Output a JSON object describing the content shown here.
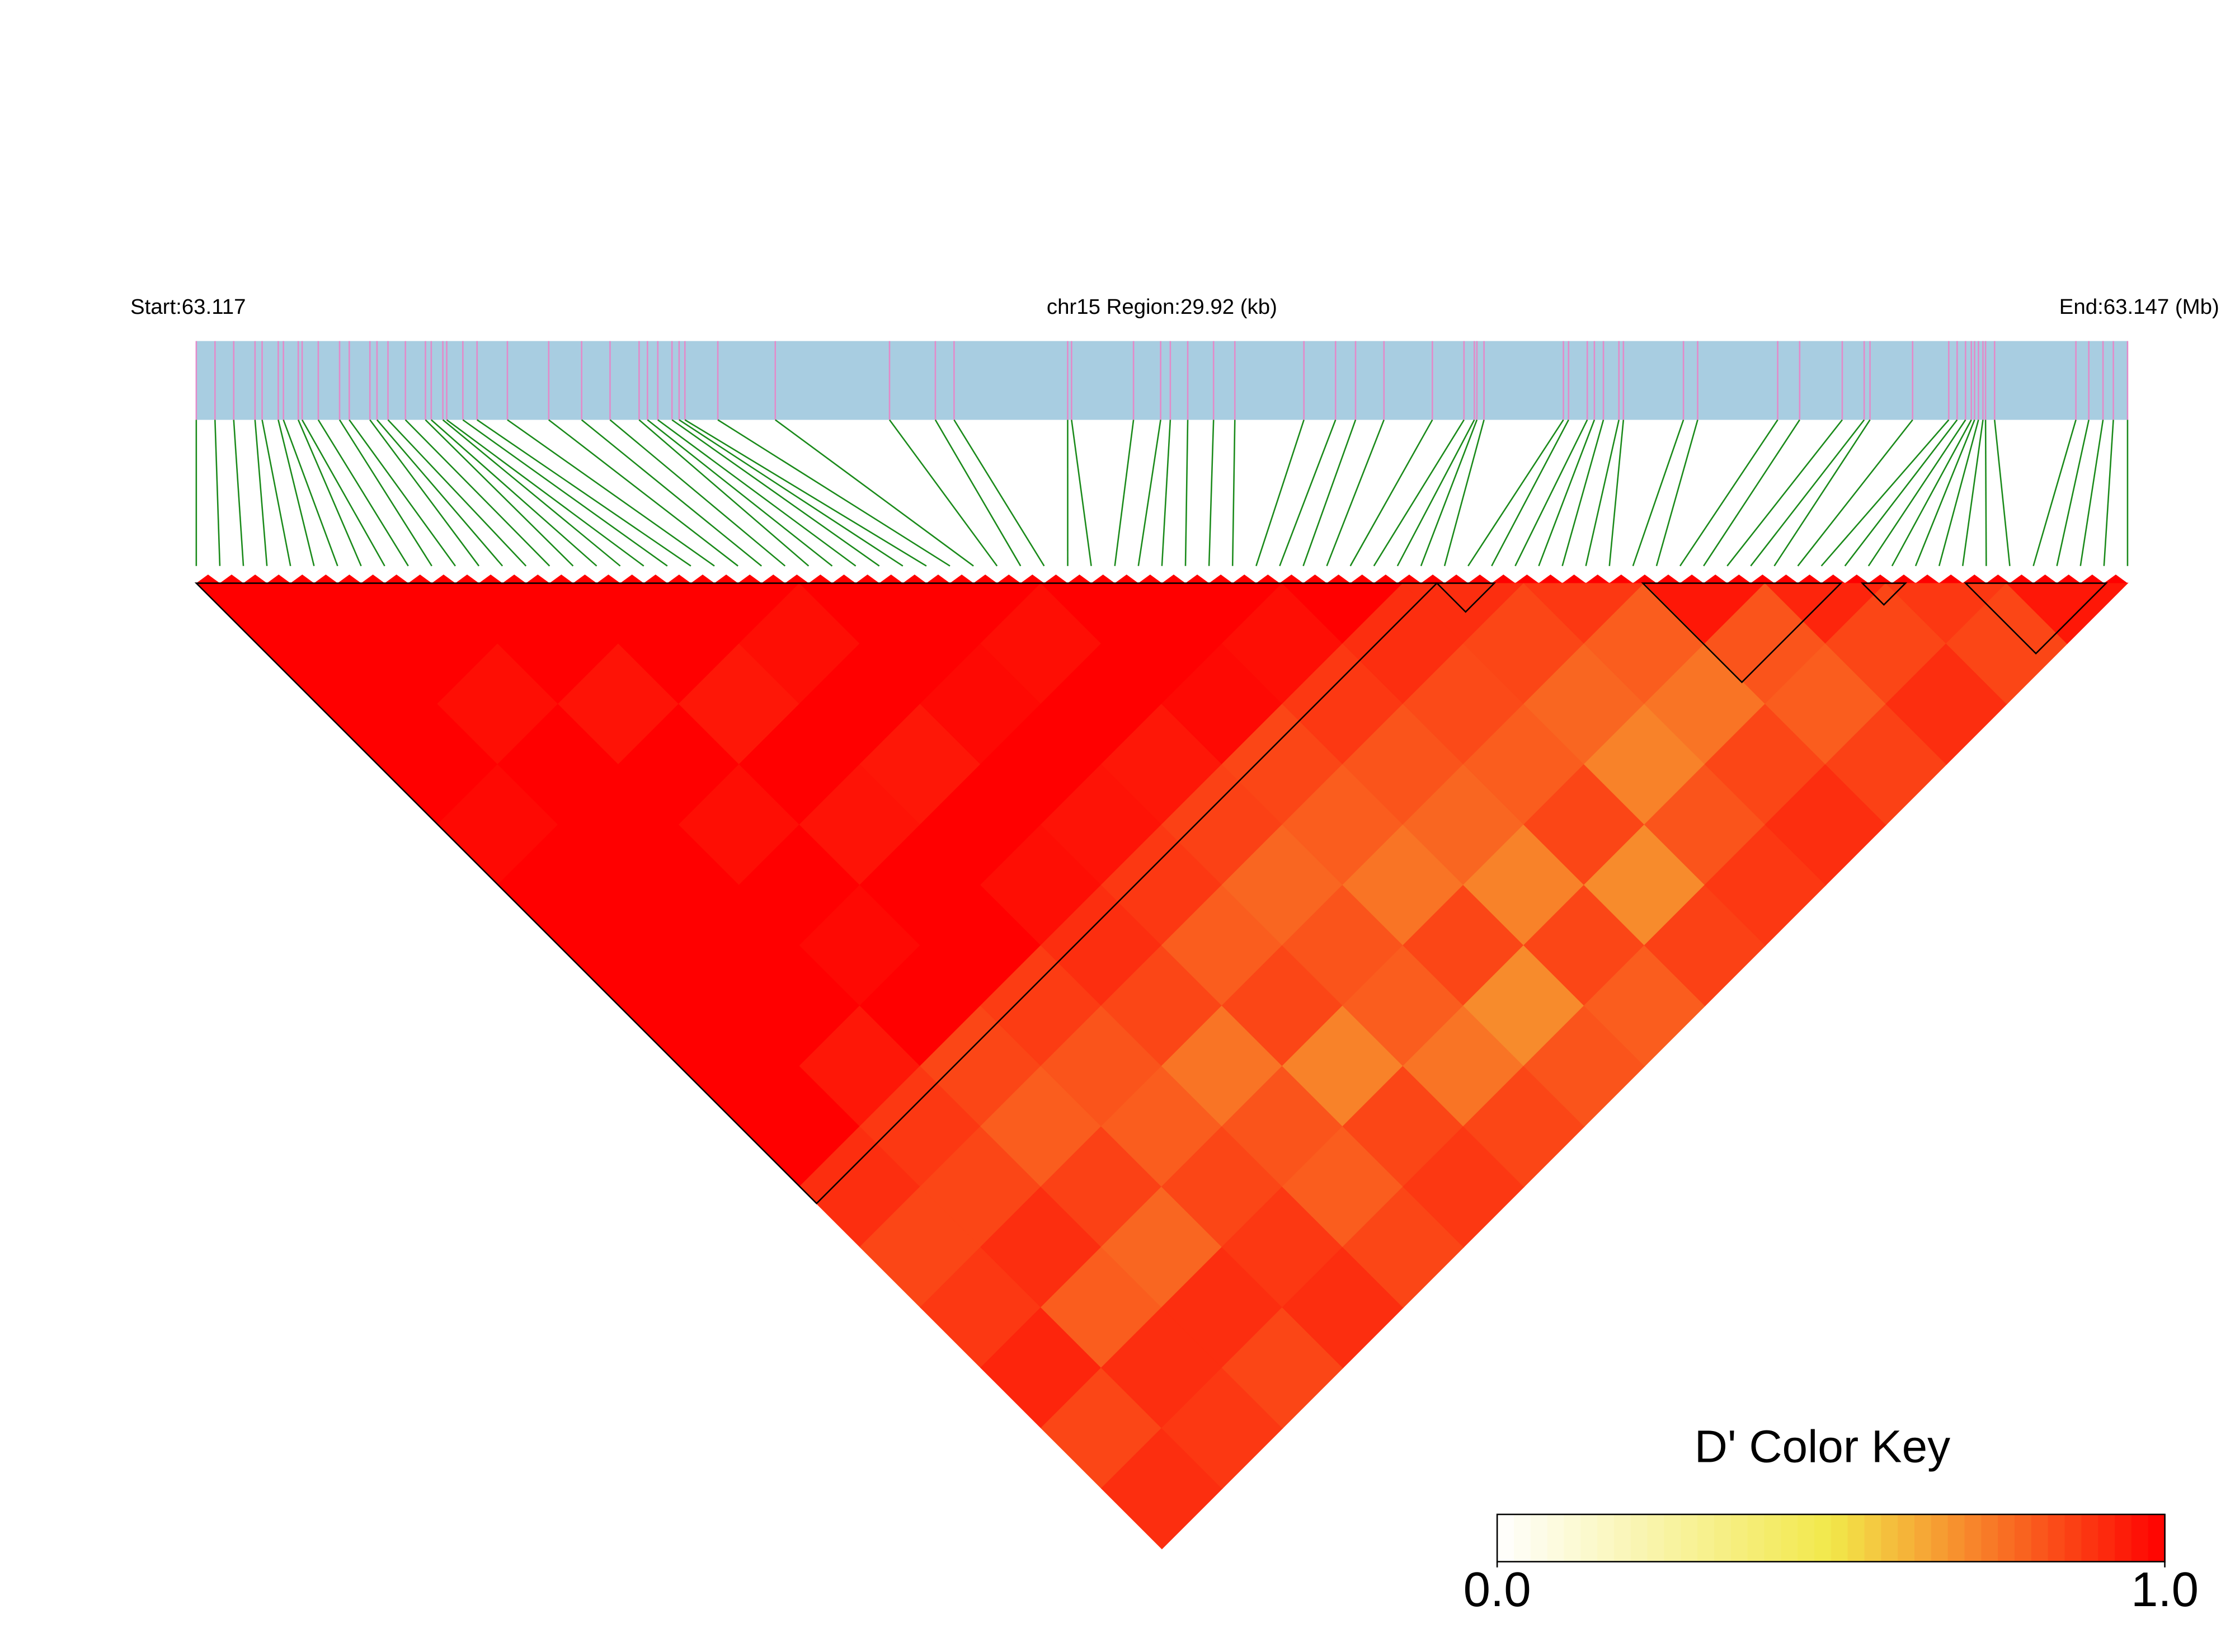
{
  "chart_data": {
    "type": "ld_heatmap",
    "start_label": "Start:63.117",
    "region_label": "chr15 Region:29.92 (kb)",
    "end_label": "End:63.147 (Mb)",
    "xlim": [
      0,
      29.92
    ],
    "snp_positions_kb": [
      0,
      0.29,
      0.58,
      0.91,
      1.02,
      1.27,
      1.35,
      1.58,
      1.64,
      1.89,
      2.22,
      2.37,
      2.69,
      2.8,
      2.97,
      3.24,
      3.55,
      3.64,
      3.82,
      3.88,
      4.13,
      4.35,
      4.82,
      5.46,
      5.97,
      6.41,
      6.86,
      6.99,
      7.15,
      7.37,
      7.48,
      7.57,
      8.08,
      8.97,
      10.74,
      11.45,
      11.74,
      13.5,
      13.56,
      14.52,
      14.94,
      15.09,
      15.36,
      15.76,
      16.09,
      17.16,
      17.65,
      17.96,
      18.4,
      19.15,
      19.64,
      19.8,
      19.84,
      19.95,
      21.18,
      21.26,
      21.55,
      21.66,
      21.8,
      22.04,
      22.11,
      23.04,
      23.26,
      24.5,
      24.84,
      25.5,
      25.84,
      25.93,
      26.59,
      27.15,
      27.28,
      27.41,
      27.5,
      27.55,
      27.61,
      27.68,
      27.72,
      27.86,
      29.12,
      29.32,
      29.54,
      29.7,
      29.92
    ],
    "dprime": [
      [
        1,
        1,
        1,
        1,
        0.98,
        1,
        1,
        1,
        1,
        1,
        0.9,
        0.85,
        0.88,
        0.92,
        0.85,
        0.9
      ],
      [
        1,
        1,
        0.97,
        1,
        1,
        1,
        1,
        1,
        0.95,
        0.88,
        0.85,
        0.9,
        0.8,
        0.9,
        0.88
      ],
      [
        1,
        1,
        0.96,
        1,
        0.97,
        1,
        0.98,
        1,
        0.85,
        0.8,
        0.86,
        0.78,
        0.9,
        0.85
      ],
      [
        1,
        1,
        0.95,
        1,
        0.96,
        1,
        1,
        0.87,
        0.82,
        0.8,
        0.85,
        0.88,
        0.9
      ],
      [
        1,
        0.97,
        1,
        0.95,
        1,
        0.97,
        0.9,
        0.85,
        0.75,
        0.82,
        0.8,
        0.85
      ],
      [
        1,
        1,
        0.98,
        1,
        0.96,
        0.88,
        0.8,
        0.85,
        0.72,
        0.85,
        0.88
      ],
      [
        1,
        0.97,
        1,
        0.95,
        0.86,
        0.78,
        0.82,
        0.8,
        0.75,
        0.85
      ],
      [
        1,
        1,
        0.98,
        0.85,
        0.8,
        0.75,
        0.85,
        0.7,
        0.82
      ],
      [
        1,
        0.97,
        0.88,
        0.82,
        0.78,
        0.72,
        0.85,
        0.8
      ],
      [
        1,
        0.9,
        0.84,
        0.8,
        0.85,
        0.7,
        0.86
      ],
      [
        0.9,
        0.85,
        0.78,
        0.72,
        0.82,
        0.88
      ],
      [
        0.88,
        0.8,
        0.75,
        0.85,
        0.9
      ],
      [
        0.95,
        0.82,
        0.8,
        0.86
      ],
      [
        0.92,
        0.85,
        0.9
      ],
      [
        0.88,
        0.85
      ],
      [
        0.95
      ]
    ],
    "ld_blocks_kb": [
      [
        0,
        19.22
      ],
      [
        19.22,
        20.11
      ],
      [
        22.41,
        25.48
      ],
      [
        25.81,
        26.48
      ],
      [
        27.41,
        29.59
      ]
    ],
    "colorbar": {
      "title": "D' Color Key",
      "lim": [
        0,
        1
      ],
      "ticks": [
        {
          "value": 0,
          "label": "0.0"
        },
        {
          "value": 1,
          "label": "1.0"
        }
      ],
      "colors": [
        "#ffffff",
        "#f2e84a",
        "#ff0000"
      ]
    }
  }
}
